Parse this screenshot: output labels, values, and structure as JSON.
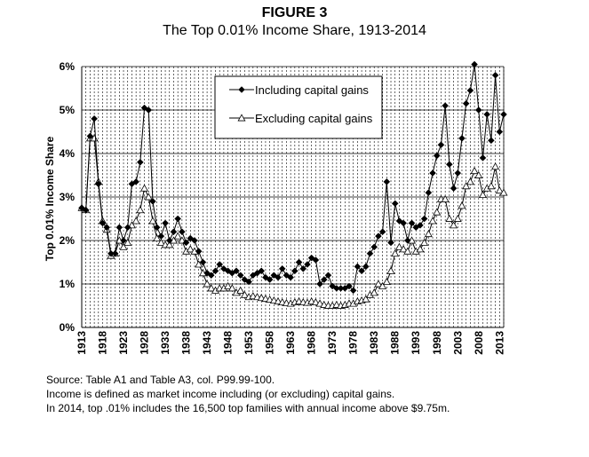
{
  "figure": {
    "label": "FIGURE 3",
    "title": "The Top 0.01% Income Share, 1913-2014"
  },
  "notes": [
    "Source: Table A1 and Table A3, col. P99.99-100.",
    "Income is defined as market income including (or excluding) capital gains.",
    "In 2014, top .01% includes the 16,500 top families with annual income above $9.75m."
  ],
  "chart_data": {
    "type": "line",
    "title": "The Top 0.01% Income Share, 1913-2014",
    "ylabel": "Top 0.01% Income Share",
    "xlabel": "",
    "ylim": [
      0,
      6
    ],
    "y_ticks": [
      "0%",
      "1%",
      "2%",
      "3%",
      "4%",
      "5%",
      "6%"
    ],
    "x_tick_labels": [
      "1913",
      "1918",
      "1923",
      "1928",
      "1933",
      "1938",
      "1943",
      "1948",
      "1953",
      "1958",
      "1963",
      "1968",
      "1973",
      "1978",
      "1983",
      "1988",
      "1993",
      "1998",
      "2003",
      "2008",
      "2013"
    ],
    "grid": "vertical dashed at every year, horizontal solid at each percent",
    "legend_position": "top-center",
    "x": [
      1913,
      1914,
      1915,
      1916,
      1917,
      1918,
      1919,
      1920,
      1921,
      1922,
      1923,
      1924,
      1925,
      1926,
      1927,
      1928,
      1929,
      1930,
      1931,
      1932,
      1933,
      1934,
      1935,
      1936,
      1937,
      1938,
      1939,
      1940,
      1941,
      1942,
      1943,
      1944,
      1945,
      1946,
      1947,
      1948,
      1949,
      1950,
      1951,
      1952,
      1953,
      1954,
      1955,
      1956,
      1957,
      1958,
      1959,
      1960,
      1961,
      1962,
      1963,
      1964,
      1965,
      1966,
      1967,
      1968,
      1969,
      1970,
      1971,
      1972,
      1973,
      1974,
      1975,
      1976,
      1977,
      1978,
      1979,
      1980,
      1981,
      1982,
      1983,
      1984,
      1985,
      1986,
      1987,
      1988,
      1989,
      1990,
      1991,
      1992,
      1993,
      1994,
      1995,
      1996,
      1997,
      1998,
      1999,
      2000,
      2001,
      2002,
      2003,
      2004,
      2005,
      2006,
      2007,
      2008,
      2009,
      2010,
      2011,
      2012,
      2013,
      2014
    ],
    "series": [
      {
        "name": "Including capital gains",
        "marker": "filled-diamond",
        "color": "#000000",
        "values": [
          2.75,
          2.7,
          4.4,
          4.8,
          3.3,
          2.4,
          2.3,
          1.7,
          1.7,
          2.3,
          2.0,
          2.3,
          3.3,
          3.35,
          3.8,
          5.05,
          5.0,
          2.9,
          2.3,
          2.1,
          2.4,
          2.0,
          2.2,
          2.5,
          2.2,
          1.95,
          2.05,
          2.0,
          1.75,
          1.5,
          1.25,
          1.2,
          1.3,
          1.45,
          1.35,
          1.3,
          1.25,
          1.3,
          1.2,
          1.1,
          1.05,
          1.2,
          1.25,
          1.3,
          1.15,
          1.1,
          1.2,
          1.15,
          1.35,
          1.2,
          1.15,
          1.3,
          1.5,
          1.35,
          1.45,
          1.6,
          1.55,
          1.0,
          1.1,
          1.2,
          0.95,
          0.9,
          0.9,
          0.9,
          0.95,
          0.85,
          1.4,
          1.3,
          1.4,
          1.7,
          1.85,
          2.1,
          2.2,
          3.35,
          1.95,
          2.85,
          2.45,
          2.4,
          2.0,
          2.4,
          2.3,
          2.35,
          2.5,
          3.1,
          3.55,
          3.95,
          4.2,
          5.1,
          3.75,
          3.2,
          3.55,
          4.35,
          5.15,
          5.45,
          6.05,
          5.0,
          3.9,
          4.9,
          4.3,
          5.8,
          4.5,
          4.9
        ]
      },
      {
        "name": "Excluding capital gains",
        "marker": "open-triangle",
        "color": "#000000",
        "values": [
          2.75,
          2.7,
          4.35,
          4.35,
          3.35,
          2.45,
          2.25,
          1.65,
          1.7,
          2.0,
          1.85,
          1.95,
          2.35,
          2.45,
          2.7,
          3.2,
          3.0,
          2.45,
          2.05,
          1.95,
          1.9,
          1.9,
          2.0,
          2.1,
          2.0,
          1.75,
          1.8,
          1.75,
          1.45,
          1.25,
          1.0,
          0.9,
          0.85,
          0.9,
          0.9,
          0.95,
          0.9,
          0.8,
          0.85,
          0.75,
          0.7,
          0.72,
          0.7,
          0.68,
          0.66,
          0.64,
          0.62,
          0.6,
          0.58,
          0.56,
          0.55,
          0.58,
          0.6,
          0.58,
          0.57,
          0.6,
          0.58,
          0.55,
          0.52,
          0.5,
          0.5,
          0.52,
          0.5,
          0.52,
          0.55,
          0.55,
          0.6,
          0.62,
          0.65,
          0.75,
          0.8,
          1.0,
          0.95,
          1.05,
          1.3,
          1.7,
          1.85,
          1.8,
          1.75,
          2.0,
          1.75,
          1.8,
          1.95,
          2.15,
          2.45,
          2.65,
          2.95,
          2.95,
          2.5,
          2.35,
          2.5,
          2.8,
          3.25,
          3.35,
          3.6,
          3.5,
          3.05,
          3.2,
          3.25,
          3.7,
          3.15,
          3.1
        ]
      }
    ]
  }
}
